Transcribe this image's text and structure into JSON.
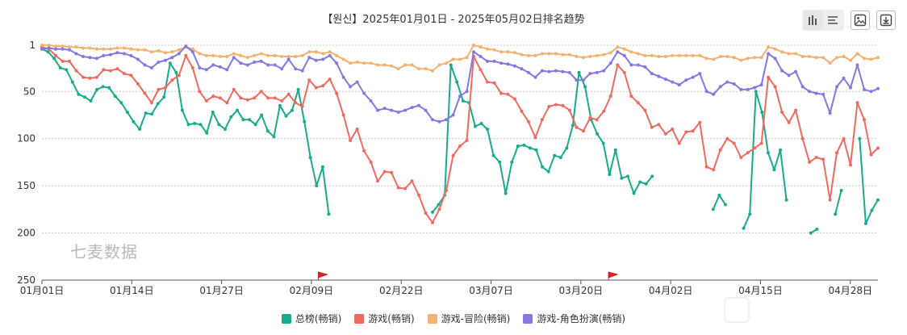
{
  "title": "【원신】2025年01月01日 - 2025年05月02日排名趋势",
  "watermark": "七麦数据",
  "toolbar": {
    "icons": [
      "bar-chart-icon",
      "list-icon",
      "image-icon",
      "download-icon"
    ]
  },
  "chart_data": {
    "type": "line",
    "title": "【원신】2025年01月01日 - 2025年05月02日排名趋势",
    "y_inverted": true,
    "ylim": [
      1,
      250
    ],
    "yticks": [
      "1",
      "50",
      "100",
      "150",
      "200",
      "250"
    ],
    "xticks": [
      "01月01日",
      "01月14日",
      "01月27日",
      "02月09日",
      "02月22日",
      "03月07日",
      "03月20日",
      "04月02日",
      "04月15日",
      "04月28日"
    ],
    "grid": true,
    "legend_position": "bottom",
    "x_start": "2025-01-01",
    "x_end": "2025-05-02",
    "event_flags": [
      "2025-02-10",
      "2025-03-24"
    ],
    "series": [
      {
        "name": "总榜(畅销)",
        "color": "#1aab8a",
        "values": [
          5,
          8,
          15,
          25,
          27,
          40,
          53,
          56,
          60,
          48,
          45,
          46,
          55,
          62,
          72,
          82,
          90,
          73,
          74,
          63,
          56,
          20,
          30,
          70,
          85,
          84,
          85,
          94,
          72,
          85,
          90,
          77,
          70,
          80,
          80,
          85,
          75,
          92,
          98,
          65,
          76,
          70,
          48,
          82,
          120,
          150,
          130,
          180,
          null,
          null,
          null,
          null,
          null,
          null,
          null,
          null,
          null,
          null,
          null,
          null,
          null,
          null,
          null,
          null,
          178,
          170,
          160,
          22,
          40,
          60,
          62,
          87,
          84,
          90,
          118,
          125,
          158,
          125,
          108,
          107,
          110,
          112,
          130,
          135,
          118,
          120,
          110,
          86,
          30,
          45,
          80,
          95,
          105,
          138,
          112,
          142,
          140,
          158,
          146,
          148,
          140,
          null,
          null,
          null,
          null,
          null,
          null,
          null,
          null,
          null,
          175,
          160,
          170,
          null,
          null,
          195,
          180,
          50,
          72,
          115,
          133,
          112,
          165,
          null,
          null,
          null,
          200,
          196,
          null,
          null,
          180,
          155,
          null,
          null,
          100,
          190,
          176,
          165
        ]
      },
      {
        "name": "游戏(畅销)",
        "color": "#ee6b60",
        "values": [
          3,
          5,
          12,
          18,
          18,
          28,
          35,
          36,
          35,
          27,
          28,
          26,
          31,
          33,
          42,
          52,
          62,
          48,
          46,
          38,
          33,
          12,
          25,
          50,
          60,
          55,
          57,
          62,
          48,
          57,
          59,
          57,
          50,
          57,
          57,
          60,
          53,
          62,
          66,
          38,
          46,
          44,
          37,
          52,
          75,
          102,
          90,
          113,
          125,
          145,
          135,
          136,
          152,
          153,
          145,
          160,
          179,
          189,
          175,
          155,
          118,
          108,
          102,
          13,
          27,
          40,
          41,
          52,
          53,
          58,
          71,
          82,
          99,
          80,
          66,
          64,
          65,
          70,
          88,
          92,
          78,
          80,
          71,
          55,
          22,
          30,
          55,
          62,
          70,
          88,
          85,
          95,
          90,
          105,
          93,
          92,
          83,
          130,
          133,
          112,
          100,
          105,
          120,
          115,
          110,
          105,
          35,
          45,
          72,
          83,
          70,
          100,
          125,
          120,
          122,
          165,
          115,
          100,
          128,
          62,
          80,
          117,
          110
        ]
      },
      {
        "name": "游戏-冒险(畅销)",
        "color": "#f3b272",
        "values": [
          1,
          1,
          2,
          2,
          3,
          3,
          4,
          4,
          5,
          5,
          5,
          4,
          4,
          5,
          6,
          6,
          8,
          7,
          9,
          8,
          6,
          3,
          5,
          10,
          12,
          12,
          13,
          13,
          10,
          12,
          14,
          12,
          10,
          12,
          12,
          13,
          13,
          13,
          12,
          8,
          8,
          10,
          8,
          12,
          16,
          20,
          19,
          20,
          20,
          22,
          22,
          23,
          26,
          22,
          22,
          26,
          26,
          28,
          22,
          20,
          16,
          16,
          14,
          1,
          3,
          5,
          6,
          8,
          8,
          9,
          11,
          12,
          12,
          10,
          10,
          10,
          11,
          11,
          13,
          14,
          13,
          12,
          11,
          9,
          3,
          5,
          8,
          10,
          12,
          12,
          13,
          13,
          12,
          12,
          12,
          12,
          12,
          15,
          16,
          13,
          13,
          14,
          17,
          15,
          14,
          14,
          3,
          5,
          8,
          10,
          10,
          13,
          13,
          14,
          14,
          20,
          14,
          13,
          17,
          10,
          15,
          16,
          14
        ]
      },
      {
        "name": "游戏-角色扮演(畅销)",
        "color": "#8678e2",
        "values": [
          5,
          4,
          5,
          5,
          6,
          10,
          13,
          14,
          15,
          12,
          11,
          9,
          10,
          12,
          16,
          22,
          25,
          19,
          17,
          14,
          10,
          2,
          8,
          25,
          27,
          22,
          24,
          27,
          14,
          20,
          22,
          19,
          18,
          22,
          22,
          26,
          16,
          26,
          28,
          14,
          17,
          16,
          12,
          20,
          35,
          45,
          40,
          52,
          60,
          70,
          68,
          70,
          72,
          70,
          67,
          65,
          70,
          80,
          82,
          80,
          75,
          55,
          50,
          8,
          13,
          18,
          18,
          20,
          21,
          23,
          26,
          30,
          35,
          28,
          29,
          28,
          29,
          30,
          38,
          38,
          31,
          30,
          28,
          20,
          8,
          12,
          22,
          22,
          24,
          31,
          34,
          37,
          40,
          43,
          38,
          35,
          31,
          50,
          53,
          45,
          40,
          42,
          48,
          48,
          46,
          43,
          10,
          15,
          28,
          33,
          29,
          45,
          50,
          52,
          53,
          73,
          45,
          36,
          46,
          22,
          48,
          50,
          47
        ]
      }
    ]
  },
  "legend": [
    {
      "label": "总榜(畅销)",
      "color": "#1aab8a"
    },
    {
      "label": "游戏(畅销)",
      "color": "#ee6b60"
    },
    {
      "label": "游戏-冒险(畅销)",
      "color": "#f3b272"
    },
    {
      "label": "游戏-角色扮演(畅销)",
      "color": "#8678e2"
    }
  ]
}
